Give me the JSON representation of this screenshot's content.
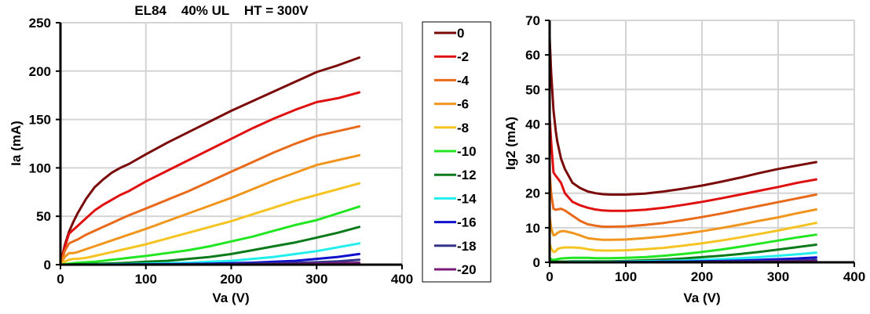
{
  "chart_data": [
    {
      "type": "line",
      "title": "EL84    40% UL    HT = 300V",
      "xlabel": "Va (V)",
      "ylabel": "Ia (mA)",
      "xlim": [
        0,
        400
      ],
      "ylim": [
        0,
        250
      ],
      "xticks": [
        "0",
        "100",
        "200",
        "300",
        "400"
      ],
      "yticks": [
        "0",
        "50",
        "100",
        "150",
        "200",
        "250"
      ],
      "grid": true,
      "x": [
        0,
        5,
        10,
        15,
        20,
        30,
        40,
        50,
        60,
        70,
        80,
        100,
        125,
        150,
        175,
        200,
        225,
        250,
        275,
        300,
        325,
        350
      ],
      "series": [
        {
          "name": "0",
          "color": "#7a0a0a",
          "values": [
            0,
            20,
            34,
            44,
            53,
            68,
            80,
            88,
            95,
            100,
            104,
            114,
            126,
            137,
            148,
            159,
            169,
            179,
            189,
            199,
            206,
            214
          ]
        },
        {
          "name": "-2",
          "color": "#e01010",
          "values": [
            0,
            18,
            32,
            36,
            40,
            48,
            56,
            62,
            67,
            72,
            76,
            86,
            97,
            108,
            119,
            130,
            141,
            151,
            160,
            168,
            172,
            178
          ]
        },
        {
          "name": "-4",
          "color": "#e86a1a",
          "values": [
            0,
            14,
            22,
            24,
            26,
            31,
            35,
            39,
            43,
            47,
            51,
            58,
            67,
            76,
            86,
            96,
            106,
            116,
            125,
            133,
            138,
            143
          ]
        },
        {
          "name": "-6",
          "color": "#f0961e",
          "values": [
            0,
            8,
            12,
            12,
            13,
            16,
            19,
            22,
            25,
            28,
            31,
            37,
            45,
            53,
            61,
            69,
            78,
            87,
            95,
            103,
            108,
            113
          ]
        },
        {
          "name": "-8",
          "color": "#f5c422",
          "values": [
            0,
            3,
            5,
            6,
            6,
            7,
            9,
            11,
            13,
            15,
            17,
            21,
            27,
            33,
            39,
            45,
            52,
            59,
            66,
            72,
            78,
            84
          ]
        },
        {
          "name": "-10",
          "color": "#22e622",
          "values": [
            0,
            0.5,
            1,
            1.5,
            2,
            2.5,
            3,
            4,
            5,
            6,
            7,
            9,
            12,
            15,
            19,
            24,
            29,
            35,
            41,
            46,
            53,
            60
          ]
        },
        {
          "name": "-12",
          "color": "#0a7a1a",
          "values": [
            0,
            0,
            0.2,
            0.3,
            0.4,
            0.6,
            0.8,
            1,
            1.3,
            1.6,
            2,
            3,
            4,
            6,
            8,
            11,
            15,
            19,
            23,
            28,
            33,
            39
          ]
        },
        {
          "name": "-14",
          "color": "#22eeee",
          "values": [
            0,
            0,
            0,
            0,
            0,
            0.1,
            0.2,
            0.3,
            0.4,
            0.5,
            0.6,
            1,
            1.5,
            2,
            3,
            4,
            6,
            8,
            11,
            14,
            18,
            22
          ]
        },
        {
          "name": "-16",
          "color": "#1010cc",
          "values": [
            0,
            0,
            0,
            0,
            0,
            0,
            0,
            0,
            0.1,
            0.1,
            0.2,
            0.3,
            0.5,
            0.7,
            1,
            1.5,
            2,
            3,
            4,
            6,
            8,
            11
          ]
        },
        {
          "name": "-18",
          "color": "#333388",
          "values": [
            0,
            0,
            0,
            0,
            0,
            0,
            0,
            0,
            0,
            0,
            0,
            0.1,
            0.2,
            0.3,
            0.4,
            0.6,
            0.9,
            1.3,
            1.8,
            2.5,
            3.5,
            5
          ]
        },
        {
          "name": "-20",
          "color": "#7a1a7a",
          "values": [
            0,
            0,
            0,
            0,
            0,
            0,
            0,
            0,
            0,
            0,
            0,
            0,
            0,
            0.1,
            0.1,
            0.2,
            0.3,
            0.5,
            0.7,
            1,
            1.5,
            2
          ]
        }
      ]
    },
    {
      "type": "line",
      "title": "",
      "xlabel": "Va (V)",
      "ylabel": "Ig2 (mA)",
      "xlim": [
        0,
        400
      ],
      "ylim": [
        0,
        70
      ],
      "xticks": [
        "0",
        "100",
        "200",
        "300",
        "400"
      ],
      "yticks": [
        "0",
        "10",
        "20",
        "30",
        "40",
        "50",
        "60",
        "70"
      ],
      "grid": true,
      "x": [
        0,
        2,
        5,
        8,
        10,
        15,
        20,
        30,
        40,
        50,
        60,
        70,
        80,
        100,
        125,
        150,
        175,
        200,
        225,
        250,
        275,
        300,
        325,
        350
      ],
      "series": [
        {
          "name": "0",
          "color": "#7a0a0a",
          "values": [
            65,
            55,
            44,
            38,
            35,
            30,
            27,
            23,
            21.5,
            20.5,
            20,
            19.7,
            19.6,
            19.6,
            19.9,
            20.5,
            21.3,
            22.2,
            23.3,
            24.5,
            25.8,
            27,
            28,
            29
          ]
        },
        {
          "name": "-2",
          "color": "#e01010",
          "values": [
            42,
            35,
            26,
            25,
            24.5,
            23,
            20,
            17.5,
            16.5,
            15.8,
            15.3,
            15,
            14.9,
            14.9,
            15.2,
            15.8,
            16.6,
            17.5,
            18.5,
            19.6,
            20.7,
            21.8,
            23,
            24
          ]
        },
        {
          "name": "-4",
          "color": "#e86a1a",
          "values": [
            26,
            20,
            15.5,
            15.2,
            15.3,
            15.5,
            15,
            13.5,
            12,
            11,
            10.6,
            10.3,
            10.3,
            10.4,
            10.8,
            11.4,
            12.2,
            13.1,
            14.1,
            15.2,
            16.3,
            17.4,
            18.5,
            19.6
          ]
        },
        {
          "name": "-6",
          "color": "#f0961e",
          "values": [
            13.5,
            10,
            7.8,
            8,
            8.5,
            9,
            9,
            8.5,
            7.8,
            7,
            6.7,
            6.5,
            6.5,
            6.6,
            7,
            7.5,
            8.2,
            9,
            9.9,
            10.9,
            12,
            13,
            14.2,
            15.3
          ]
        },
        {
          "name": "-8",
          "color": "#f5c422",
          "values": [
            5.5,
            4,
            3,
            3.2,
            3.8,
            4.2,
            4.3,
            4.3,
            4.2,
            3.8,
            3.5,
            3.4,
            3.4,
            3.5,
            3.8,
            4.2,
            4.8,
            5.5,
            6.3,
            7.2,
            8.2,
            9.2,
            10.3,
            11.4
          ]
        },
        {
          "name": "-10",
          "color": "#22e622",
          "values": [
            1.2,
            0.9,
            0.7,
            0.8,
            0.9,
            1.1,
            1.2,
            1.3,
            1.3,
            1.3,
            1.2,
            1.2,
            1.2,
            1.3,
            1.5,
            1.9,
            2.4,
            3,
            3.7,
            4.5,
            5.4,
            6.3,
            7.2,
            8
          ]
        },
        {
          "name": "-12",
          "color": "#0a7a1a",
          "values": [
            0.2,
            0.2,
            0.2,
            0.2,
            0.2,
            0.2,
            0.2,
            0.3,
            0.3,
            0.3,
            0.3,
            0.3,
            0.3,
            0.4,
            0.6,
            0.8,
            1.1,
            1.5,
            1.9,
            2.4,
            3,
            3.7,
            4.4,
            5.1
          ]
        },
        {
          "name": "-14",
          "color": "#22eeee",
          "values": [
            0,
            0,
            0,
            0,
            0,
            0,
            0,
            0.1,
            0.1,
            0.1,
            0.1,
            0.1,
            0.1,
            0.2,
            0.3,
            0.4,
            0.5,
            0.7,
            0.9,
            1.2,
            1.5,
            1.9,
            2.3,
            2.8
          ]
        },
        {
          "name": "-16",
          "color": "#1010cc",
          "values": [
            0,
            0,
            0,
            0,
            0,
            0,
            0,
            0,
            0,
            0,
            0,
            0,
            0,
            0.1,
            0.1,
            0.2,
            0.2,
            0.3,
            0.4,
            0.5,
            0.7,
            0.9,
            1.1,
            1.4
          ]
        },
        {
          "name": "-18",
          "color": "#333388",
          "values": [
            0,
            0,
            0,
            0,
            0,
            0,
            0,
            0,
            0,
            0,
            0,
            0,
            0,
            0,
            0,
            0.1,
            0.1,
            0.1,
            0.2,
            0.2,
            0.3,
            0.4,
            0.5,
            0.7
          ]
        },
        {
          "name": "-20",
          "color": "#7a1a7a",
          "values": [
            0,
            0,
            0,
            0,
            0,
            0,
            0,
            0,
            0,
            0,
            0,
            0,
            0,
            0,
            0,
            0,
            0,
            0,
            0.1,
            0.1,
            0.1,
            0.2,
            0.2,
            0.3
          ]
        }
      ]
    }
  ],
  "legend": {
    "placement": "between-charts",
    "entries": [
      "0",
      "-2",
      "-4",
      "-6",
      "-8",
      "-10",
      "-12",
      "-14",
      "-16",
      "-18",
      "-20"
    ]
  }
}
